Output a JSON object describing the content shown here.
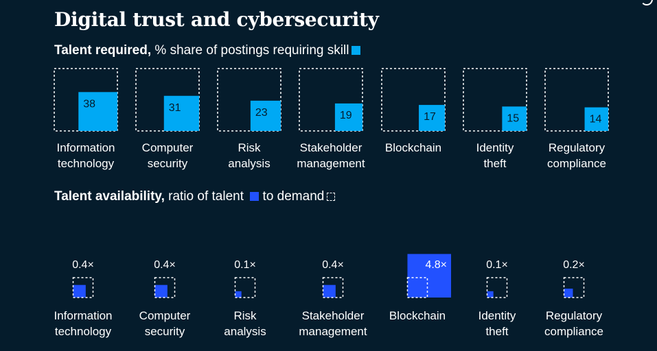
{
  "page": {
    "title": "Digital trust and cybersecurity",
    "section1": {
      "bold": "Talent required,",
      "rest": " % share of postings requiring skill"
    },
    "section2": {
      "bold": "Talent availability,",
      "rest1": " ratio of talent",
      "rest2": "to demand"
    }
  },
  "colors": {
    "background": "#051c2c",
    "required_fill": "#00a9f4",
    "availability_fill": "#2251ff",
    "outline": "#ffffff"
  },
  "chart_data": [
    {
      "type": "bar",
      "subtype": "proportional-square",
      "title": "Talent required, % share of postings requiring skill",
      "categories": [
        [
          "Information",
          "technology"
        ],
        [
          "Computer",
          "security"
        ],
        [
          "Risk",
          "analysis"
        ],
        [
          "Stakeholder",
          "management"
        ],
        [
          "Blockchain"
        ],
        [
          "Identity",
          "theft"
        ],
        [
          "Regulatory",
          "compliance"
        ]
      ],
      "values": [
        38,
        31,
        23,
        19,
        17,
        15,
        14
      ],
      "value_labels": [
        "38",
        "31",
        "23",
        "19",
        "17",
        "15",
        "14"
      ],
      "unit": "%",
      "ylim": [
        0,
        100
      ]
    },
    {
      "type": "bar",
      "subtype": "proportional-square",
      "title": "Talent availability, ratio of talent to demand",
      "categories": [
        [
          "Information",
          "technology"
        ],
        [
          "Computer",
          "security"
        ],
        [
          "Risk",
          "analysis"
        ],
        [
          "Stakeholder",
          "management"
        ],
        [
          "Blockchain"
        ],
        [
          "Identity",
          "theft"
        ],
        [
          "Regulatory",
          "compliance"
        ]
      ],
      "values": [
        0.4,
        0.4,
        0.1,
        0.4,
        4.8,
        0.1,
        0.2
      ],
      "value_labels": [
        "0.4×",
        "0.4×",
        "0.1×",
        "0.4×",
        "4.8×",
        "0.1×",
        "0.2×"
      ],
      "reference_value": 1
    }
  ]
}
